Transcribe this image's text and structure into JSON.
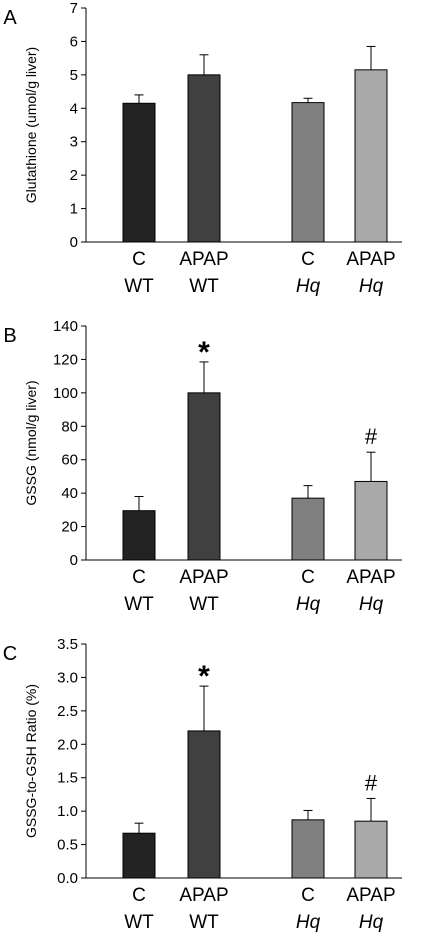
{
  "chart_data": [
    {
      "type": "bar",
      "panel_label": "A",
      "ylabel": "Glutathione (umol/g liver)",
      "ylim": [
        0,
        7
      ],
      "yticks": [
        0,
        1,
        2,
        3,
        4,
        5,
        6,
        7
      ],
      "categories": [
        {
          "line1": "C",
          "line2": "WT",
          "italic2": false
        },
        {
          "line1": "APAP",
          "line2": "WT",
          "italic2": false
        },
        {
          "line1": "C",
          "line2": "Hq",
          "italic2": true
        },
        {
          "line1": "APAP",
          "line2": "Hq",
          "italic2": true
        }
      ],
      "values": [
        4.15,
        5.0,
        4.17,
        5.15
      ],
      "errors": [
        0.25,
        0.6,
        0.13,
        0.7
      ],
      "colors": [
        "#232323",
        "#404040",
        "#808080",
        "#a9a9a9"
      ],
      "annotations": [
        "",
        "",
        "",
        ""
      ]
    },
    {
      "type": "bar",
      "panel_label": "B",
      "ylabel": "GSSG (nmol/g liver)",
      "ylim": [
        0,
        140
      ],
      "yticks": [
        0,
        20,
        40,
        60,
        80,
        100,
        120,
        140
      ],
      "categories": [
        {
          "line1": "C",
          "line2": "WT",
          "italic2": false
        },
        {
          "line1": "APAP",
          "line2": "WT",
          "italic2": false
        },
        {
          "line1": "C",
          "line2": "Hq",
          "italic2": true
        },
        {
          "line1": "APAP",
          "line2": "Hq",
          "italic2": true
        }
      ],
      "values": [
        29.5,
        100,
        37,
        47
      ],
      "errors": [
        8.5,
        18.5,
        7.5,
        17.5
      ],
      "colors": [
        "#232323",
        "#404040",
        "#808080",
        "#a9a9a9"
      ],
      "annotations": [
        "",
        "*",
        "",
        "#"
      ]
    },
    {
      "type": "bar",
      "panel_label": "C",
      "ylabel": "GSSG-to-GSH Ratio (%)",
      "ylim": [
        0,
        3.5
      ],
      "yticks": [
        "0.0",
        "0.5",
        "1.0",
        "1.5",
        "2.0",
        "2.5",
        "3.0",
        "3.5"
      ],
      "categories": [
        {
          "line1": "C",
          "line2": "WT",
          "italic2": false
        },
        {
          "line1": "APAP",
          "line2": "WT",
          "italic2": false
        },
        {
          "line1": "C",
          "line2": "Hq",
          "italic2": true
        },
        {
          "line1": "APAP",
          "line2": "Hq",
          "italic2": true
        }
      ],
      "values": [
        0.67,
        2.2,
        0.87,
        0.85
      ],
      "errors": [
        0.15,
        0.67,
        0.14,
        0.34
      ],
      "colors": [
        "#232323",
        "#404040",
        "#808080",
        "#a9a9a9"
      ],
      "annotations": [
        "",
        "*",
        "",
        "#"
      ]
    }
  ]
}
